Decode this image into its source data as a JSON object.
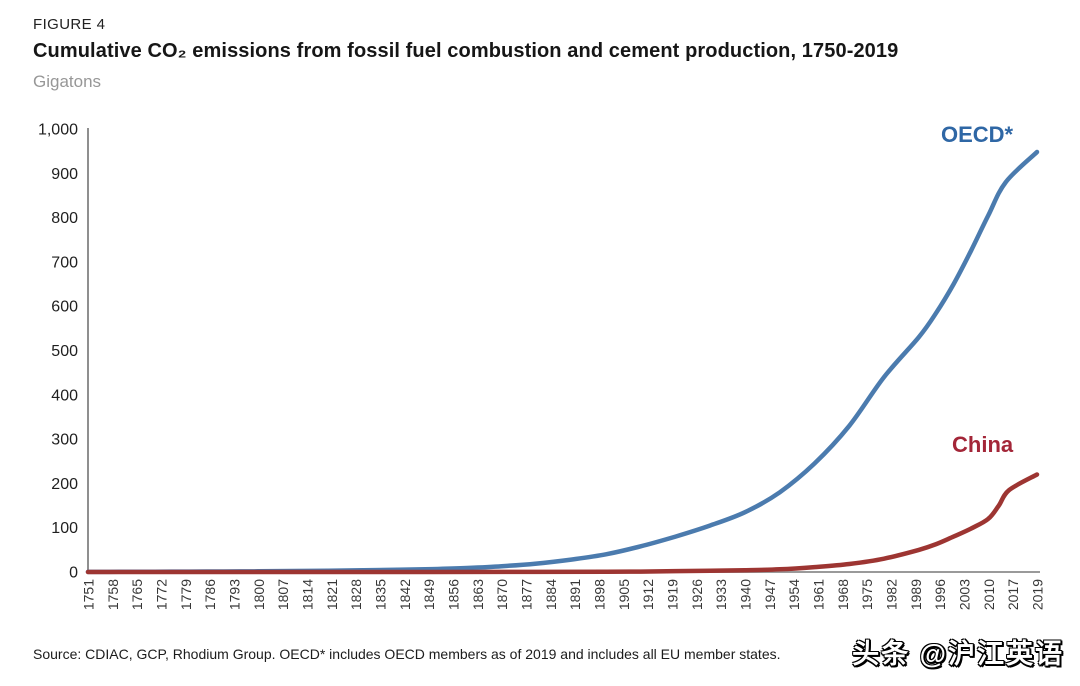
{
  "header": {
    "figure_label": "FIGURE 4",
    "title": "Cumulative CO₂ emissions from fossil fuel combustion and cement production, 1750-2019",
    "units": "Gigatons"
  },
  "chart_data": {
    "type": "line",
    "title": "Cumulative CO₂ emissions from fossil fuel combustion and cement production, 1750-2019",
    "xlabel": "",
    "ylabel": "Gigatons",
    "ylim": [
      0,
      1000
    ],
    "y_ticks": [
      0,
      100,
      200,
      300,
      400,
      500,
      600,
      700,
      800,
      900,
      1000
    ],
    "x_tick_years": [
      1751,
      1758,
      1765,
      1772,
      1779,
      1786,
      1793,
      1800,
      1807,
      1814,
      1821,
      1828,
      1835,
      1842,
      1849,
      1856,
      1863,
      1870,
      1877,
      1884,
      1891,
      1898,
      1905,
      1912,
      1919,
      1926,
      1933,
      1940,
      1947,
      1954,
      1961,
      1968,
      1975,
      1982,
      1989,
      1996,
      2003,
      2010,
      2017,
      2019
    ],
    "grid": false,
    "legend_position": "inline-end-of-line-labels",
    "axis_color": "#8f8f8f",
    "tick_label_color": "#383838",
    "series": [
      {
        "id": "oecd",
        "name": "OECD*",
        "color": "#4b7bae",
        "label_color": "#2f67a5",
        "points": [
          [
            1751,
            0.2
          ],
          [
            1760,
            0.4
          ],
          [
            1770,
            0.6
          ],
          [
            1780,
            0.9
          ],
          [
            1790,
            1.2
          ],
          [
            1800,
            1.6
          ],
          [
            1810,
            2.2
          ],
          [
            1820,
            3
          ],
          [
            1830,
            4
          ],
          [
            1840,
            5
          ],
          [
            1850,
            6.5
          ],
          [
            1860,
            9
          ],
          [
            1870,
            13
          ],
          [
            1880,
            19
          ],
          [
            1890,
            28
          ],
          [
            1900,
            40
          ],
          [
            1910,
            58
          ],
          [
            1920,
            80
          ],
          [
            1930,
            105
          ],
          [
            1940,
            135
          ],
          [
            1950,
            180
          ],
          [
            1960,
            245
          ],
          [
            1970,
            330
          ],
          [
            1980,
            440
          ],
          [
            1990,
            530
          ],
          [
            1995,
            585
          ],
          [
            2000,
            650
          ],
          [
            2005,
            725
          ],
          [
            2010,
            805
          ],
          [
            2015,
            880
          ],
          [
            2019,
            948
          ]
        ]
      },
      {
        "id": "china",
        "name": "China",
        "color": "#9d3532",
        "label_color": "#a32638",
        "points": [
          [
            1751,
            0
          ],
          [
            1800,
            0
          ],
          [
            1850,
            0.1
          ],
          [
            1880,
            0.2
          ],
          [
            1900,
            0.5
          ],
          [
            1910,
            1
          ],
          [
            1920,
            2
          ],
          [
            1930,
            3
          ],
          [
            1940,
            4
          ],
          [
            1950,
            6
          ],
          [
            1960,
            11
          ],
          [
            1970,
            18
          ],
          [
            1980,
            30
          ],
          [
            1990,
            50
          ],
          [
            1995,
            63
          ],
          [
            2000,
            80
          ],
          [
            2005,
            98
          ],
          [
            2010,
            120
          ],
          [
            2013,
            150
          ],
          [
            2016,
            185
          ],
          [
            2019,
            220
          ]
        ]
      }
    ]
  },
  "footer": {
    "source": "Source: CDIAC, GCP, Rhodium Group. OECD* includes OECD members as of 2019 and includes all EU member states.",
    "watermark": "头条 @沪江英语"
  }
}
